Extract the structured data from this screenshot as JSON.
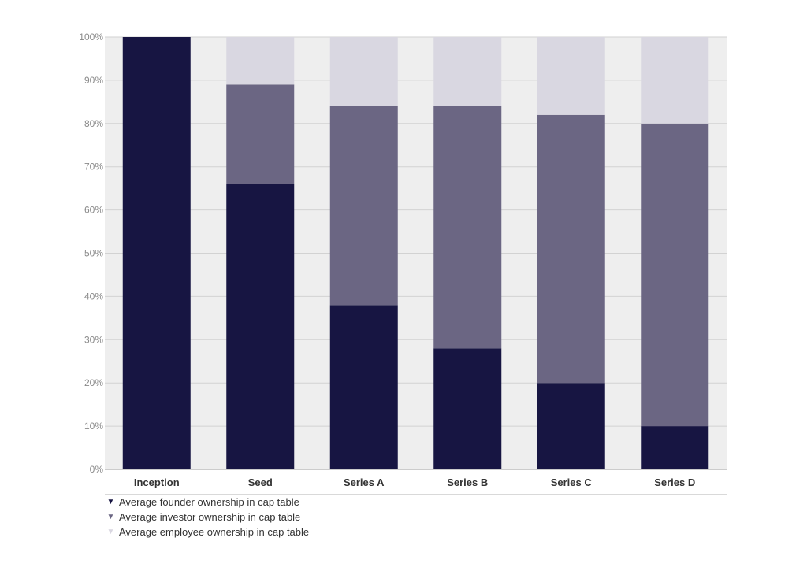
{
  "chart_data": {
    "type": "bar",
    "stacked": true,
    "categories": [
      "Inception",
      "Seed",
      "Series A",
      "Series B",
      "Series C",
      "Series D"
    ],
    "series": [
      {
        "name": "Average founder ownership in cap table",
        "color": "#171542",
        "values": [
          100,
          66,
          38,
          28,
          20,
          10
        ]
      },
      {
        "name": "Average investor ownership in cap table",
        "color": "#6b6683",
        "values": [
          0,
          23,
          46,
          56,
          62,
          70
        ]
      },
      {
        "name": "Average employee ownership in cap table",
        "color": "#d9d7e1",
        "values": [
          0,
          11,
          16,
          16,
          18,
          20
        ]
      }
    ],
    "ylim": [
      0,
      100
    ],
    "yticks": [
      "0%",
      "10%",
      "20%",
      "30%",
      "40%",
      "50%",
      "60%",
      "70%",
      "80%",
      "90%",
      "100%"
    ],
    "grid": true,
    "legend_position": "bottom-left"
  },
  "legend": {
    "items": [
      {
        "label": "Average founder ownership in cap table",
        "icon": "triangle-down-icon",
        "glyph": "▼",
        "color": "#171542"
      },
      {
        "label": "Average investor ownership in cap table",
        "icon": "triangle-down-icon",
        "glyph": "▼",
        "color": "#6b6683"
      },
      {
        "label": "Average employee ownership in cap table",
        "icon": "triangle-down-icon",
        "glyph": "▼",
        "color": "#d9d7e1"
      }
    ]
  }
}
